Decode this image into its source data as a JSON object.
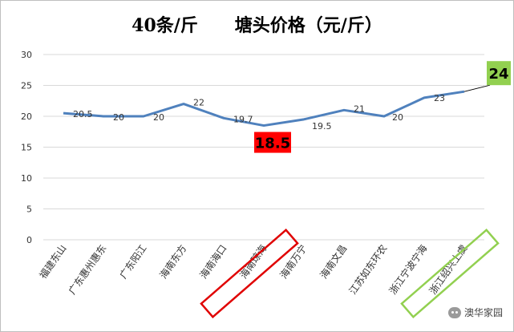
{
  "chart_data": {
    "type": "line",
    "title": "40条/斤      塘头价格（元/斤）",
    "categories": [
      "福建东山",
      "广东惠州惠东",
      "广东阳江",
      "海南东方",
      "海南海口",
      "海南琼海",
      "海南万宁",
      "海南文昌",
      "江苏如东环农",
      "浙江宁波宁海",
      "浙江绍兴上虞"
    ],
    "series": [
      {
        "values": [
          20.5,
          20,
          20,
          22,
          19.7,
          18.5,
          19.5,
          21,
          20,
          23,
          24
        ]
      }
    ],
    "data_labels": [
      "20.5",
      "20",
      "20",
      "22",
      "19.7",
      "18.5",
      "19.5",
      "21",
      "20",
      "23",
      "24"
    ],
    "ylim": [
      0,
      30
    ],
    "yticks": [
      "0",
      "5",
      "10",
      "15",
      "20",
      "25",
      "30"
    ],
    "xlabel": "",
    "ylabel": "",
    "grid": true,
    "highlights": [
      {
        "index": 5,
        "label": "18.5",
        "color": "#ff0000",
        "text_color": "#000000"
      },
      {
        "index": 10,
        "label": "24",
        "color": "#92d050",
        "text_color": "#000000"
      }
    ],
    "colors": {
      "line": "#4f81bd",
      "grid": "#d9d9d9",
      "low_box": "#e00000",
      "high_box": "#92d050"
    }
  },
  "watermark": {
    "text": "澳华家园",
    "icon": "wechat-icon"
  }
}
